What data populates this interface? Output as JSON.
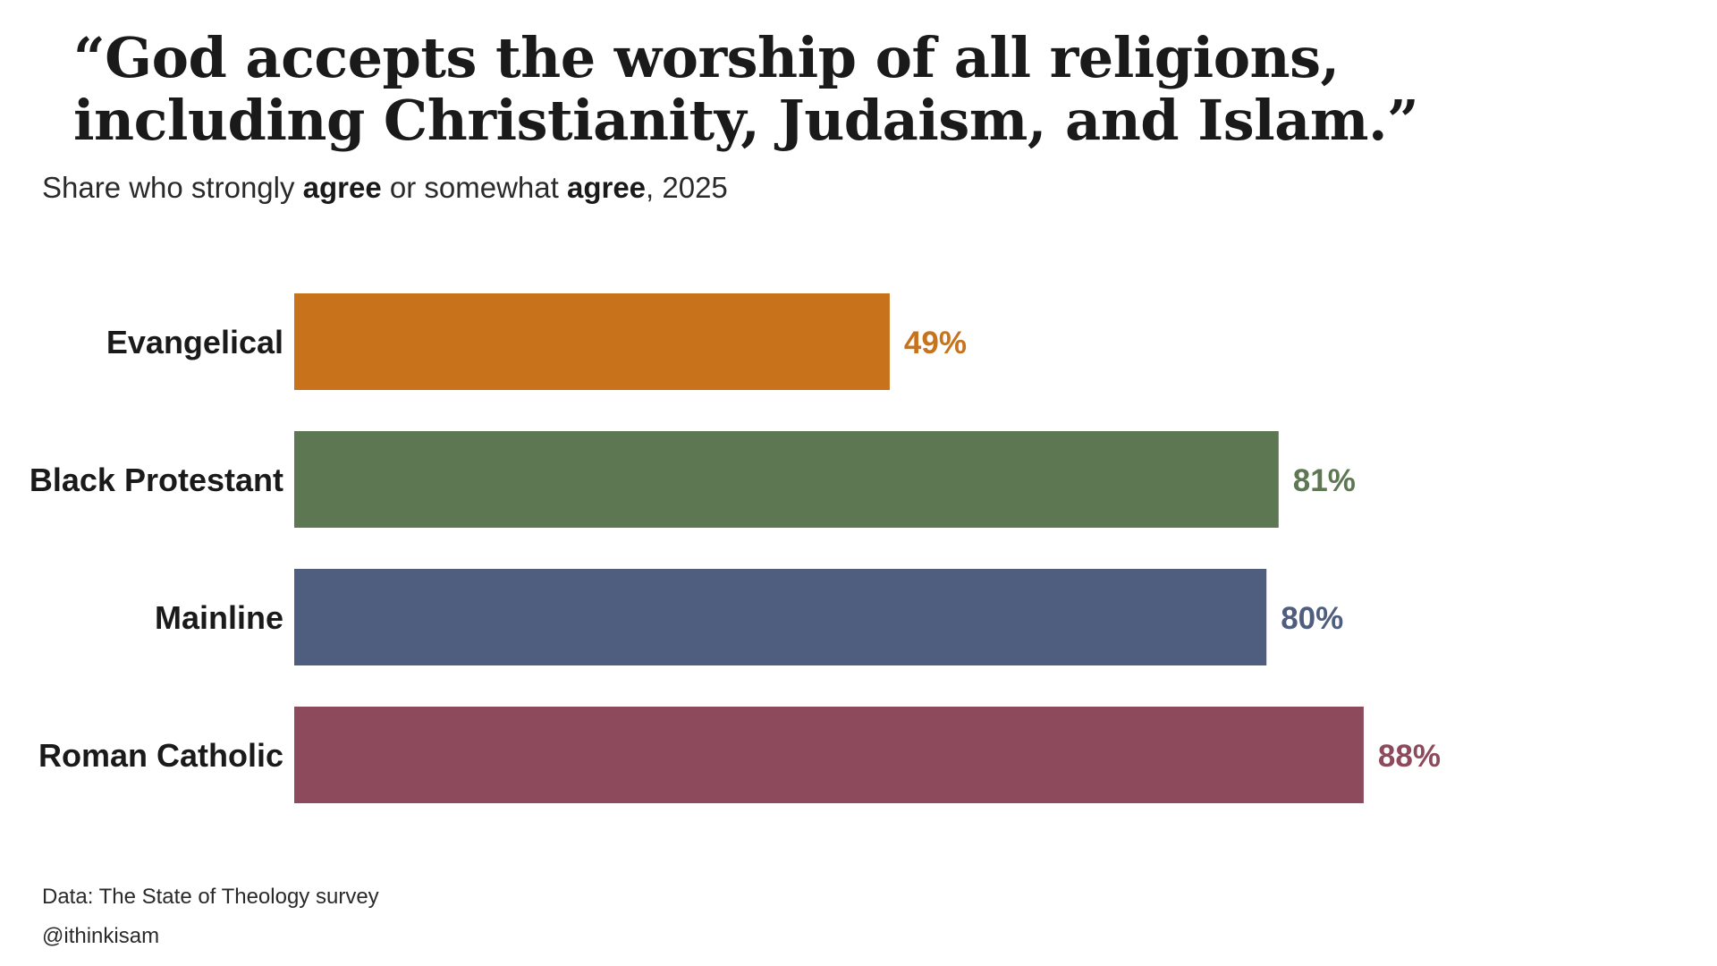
{
  "title": "“God accepts the worship of all religions, including Christianity, Judaism, and Islam.”",
  "subtitle": {
    "part1": "Share who strongly ",
    "bold1": "agree",
    "part2": " or somewhat ",
    "bold2": "agree",
    "part3": ", 2025"
  },
  "chart_data": {
    "type": "bar",
    "orientation": "horizontal",
    "categories": [
      "Evangelical",
      "Black Protestant",
      "Mainline",
      "Roman Catholic"
    ],
    "values": [
      49,
      81,
      80,
      88
    ],
    "value_labels": [
      "49%",
      "81%",
      "80%",
      "88%"
    ],
    "colors": [
      "#C8721C",
      "#5C7752",
      "#4F5D7E",
      "#8C4A5C"
    ],
    "xlim": [
      0,
      100
    ],
    "grid": false,
    "legend": "none"
  },
  "footer": {
    "source": "Data: The State of Theology survey",
    "credit": "@ithinkisam"
  }
}
